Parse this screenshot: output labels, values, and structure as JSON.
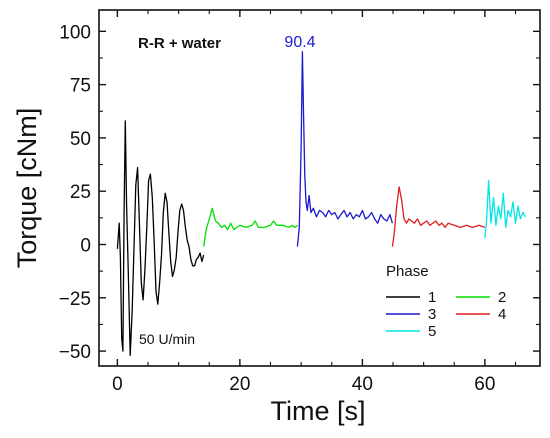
{
  "chart_data": {
    "type": "line",
    "title": "",
    "xlabel": "Time [s]",
    "ylabel": "Torque [cNm]",
    "xlim": [
      -3,
      69
    ],
    "ylim": [
      -57,
      110
    ],
    "xticks": [
      0,
      20,
      40,
      60
    ],
    "yticks": [
      -50,
      -25,
      0,
      25,
      50,
      75,
      100
    ],
    "grid": false,
    "annotations": {
      "sample_label": "R-R + water",
      "peak_label": "90.4",
      "speed_label": "50 U/min"
    },
    "legend": {
      "title": "Phase",
      "placement": "bottom-right",
      "columns": 2
    },
    "series": [
      {
        "name": "1",
        "color": "#000000",
        "x": [
          0.0,
          0.3,
          0.5,
          0.7,
          0.9,
          1.1,
          1.3,
          1.5,
          1.8,
          2.1,
          2.4,
          2.7,
          3.0,
          3.3,
          3.6,
          3.9,
          4.2,
          4.5,
          4.8,
          5.1,
          5.4,
          5.7,
          6.0,
          6.3,
          6.6,
          6.9,
          7.2,
          7.5,
          7.8,
          8.1,
          8.4,
          8.7,
          9.0,
          9.3,
          9.6,
          9.9,
          10.2,
          10.5,
          10.8,
          11.1,
          11.4,
          11.7,
          12.0,
          12.3,
          12.6,
          12.9,
          13.2,
          13.5,
          13.8,
          14.1
        ],
        "y": [
          -2,
          10,
          -6,
          -44,
          -50,
          15,
          58,
          18,
          -15,
          -52,
          -32,
          -3,
          28,
          36,
          10,
          -18,
          -26,
          -12,
          8,
          30,
          33,
          22,
          2,
          -22,
          -28,
          -18,
          -5,
          15,
          24,
          20,
          6,
          -8,
          -15,
          -12,
          -6,
          6,
          16,
          19,
          16,
          8,
          2,
          -1,
          -7,
          -10,
          -10,
          -7,
          -6,
          -4,
          -8,
          -5
        ]
      },
      {
        "name": "2",
        "color": "#00e000",
        "x": [
          14.1,
          14.5,
          15.0,
          15.5,
          16.0,
          16.5,
          17.0,
          17.5,
          18.0,
          18.5,
          19.0,
          19.5,
          20.0,
          21.0,
          22.0,
          22.5,
          23.0,
          24.0,
          25.0,
          25.5,
          26.0,
          27.0,
          28.0,
          28.5,
          29.0,
          29.4
        ],
        "y": [
          -1,
          7,
          12,
          17,
          11,
          10,
          8,
          9,
          7,
          10,
          7,
          8,
          9,
          8,
          9,
          11,
          8,
          8,
          9,
          11,
          9,
          9,
          8,
          9,
          8,
          9
        ]
      },
      {
        "name": "3",
        "color": "#1a1acc",
        "x": [
          29.4,
          29.7,
          30.0,
          30.2,
          30.4,
          30.6,
          30.8,
          31.0,
          31.3,
          31.6,
          32.0,
          32.5,
          33.0,
          33.5,
          34.0,
          34.5,
          35.0,
          35.5,
          36.0,
          36.5,
          37.0,
          37.5,
          38.0,
          38.5,
          39.0,
          39.5,
          40.0,
          40.5,
          41.0,
          41.5,
          42.0,
          42.5,
          43.0,
          43.5,
          44.0,
          44.5,
          44.9
        ],
        "y": [
          -1,
          8,
          45,
          90.4,
          60,
          32,
          20,
          16,
          23,
          15,
          17,
          13,
          16,
          15,
          13,
          16,
          14,
          15,
          12,
          14,
          16,
          13,
          15,
          12,
          14,
          13,
          16,
          12,
          13,
          15,
          12,
          10,
          14,
          12,
          11,
          14,
          10
        ]
      },
      {
        "name": "4",
        "color": "#e01e1e",
        "x": [
          44.9,
          45.2,
          45.6,
          46.0,
          46.4,
          46.8,
          47.2,
          47.6,
          48.0,
          48.5,
          49.0,
          49.5,
          50.0,
          50.5,
          51.0,
          51.5,
          52.0,
          52.5,
          53.0,
          53.5,
          54.0,
          55.0,
          56.0,
          57.0,
          58.0,
          59.0,
          60.0
        ],
        "y": [
          -1,
          5,
          18,
          27,
          21,
          12,
          10,
          12,
          11,
          10,
          12,
          9,
          10,
          11,
          9,
          10,
          11,
          9,
          10,
          8,
          10,
          9,
          8,
          9,
          8,
          9,
          8
        ]
      },
      {
        "name": "5",
        "color": "#00e6e6",
        "x": [
          60.0,
          60.3,
          60.6,
          61.0,
          61.4,
          61.8,
          62.2,
          62.6,
          63.0,
          63.4,
          63.8,
          64.2,
          64.6,
          65.0,
          65.4,
          65.8,
          66.2,
          66.6
        ],
        "y": [
          3,
          12,
          30,
          10,
          22,
          9,
          18,
          12,
          24,
          8,
          16,
          13,
          20,
          10,
          18,
          12,
          15,
          13
        ]
      }
    ]
  }
}
